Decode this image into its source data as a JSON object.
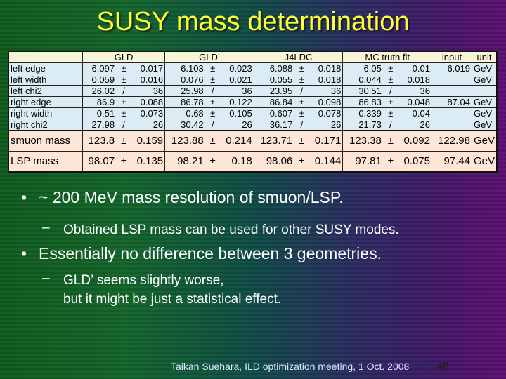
{
  "slide": {
    "title": "SUSY mass determination",
    "table": {
      "headers": [
        "",
        "GLD",
        "GLD’",
        "J4LDC",
        "MC truth fit",
        "input",
        "unit"
      ],
      "fit_rows": [
        {
          "label": "left edge",
          "cells": [
            [
              "6.097",
              "±",
              "0.017"
            ],
            [
              "6.103",
              "±",
              "0.023"
            ],
            [
              "6.088",
              "±",
              "0.018"
            ],
            [
              "6.05",
              "±",
              "0.01"
            ]
          ],
          "input": "6.019",
          "unit": "GeV"
        },
        {
          "label": "left width",
          "cells": [
            [
              "0.059",
              "±",
              "0.016"
            ],
            [
              "0.076",
              "±",
              "0.021"
            ],
            [
              "0.055",
              "±",
              "0.018"
            ],
            [
              "0.044",
              "±",
              "0.018"
            ]
          ],
          "input": "",
          "unit": "GeV"
        },
        {
          "label": "left chi2",
          "cells": [
            [
              "26.02",
              "/",
              "36"
            ],
            [
              "25.98",
              "/",
              "36"
            ],
            [
              "23.95",
              "/",
              "36"
            ],
            [
              "30.51",
              "/",
              "36"
            ]
          ],
          "input": "",
          "unit": ""
        },
        {
          "label": "right edge",
          "cells": [
            [
              "86.9",
              "±",
              "0.088"
            ],
            [
              "86.78",
              "±",
              "0.122"
            ],
            [
              "86.84",
              "±",
              "0.098"
            ],
            [
              "86.83",
              "±",
              "0.048"
            ]
          ],
          "input": "87.04",
          "unit": "GeV"
        },
        {
          "label": "right width",
          "cells": [
            [
              "0.51",
              "±",
              "0.073"
            ],
            [
              "0.68",
              "±",
              "0.105"
            ],
            [
              "0.607",
              "±",
              "0.078"
            ],
            [
              "0.339",
              "±",
              "0.04"
            ]
          ],
          "input": "",
          "unit": "GeV"
        },
        {
          "label": "right chi2",
          "cells": [
            [
              "27.98",
              "/",
              "26"
            ],
            [
              "30.42",
              "/",
              "26"
            ],
            [
              "36.17",
              "/",
              "26"
            ],
            [
              "21.73",
              "/",
              "26"
            ]
          ],
          "input": "",
          "unit": "GeV"
        }
      ],
      "mass_rows": [
        {
          "label": "smuon mass",
          "cells": [
            [
              "123.8",
              "±",
              "0.159"
            ],
            [
              "123.88",
              "±",
              "0.214"
            ],
            [
              "123.71",
              "±",
              "0.171"
            ],
            [
              "123.38",
              "±",
              "0.092"
            ]
          ],
          "input": "122.98",
          "unit": "GeV"
        },
        {
          "label": "LSP mass",
          "cells": [
            [
              "98.07",
              "±",
              "0.135"
            ],
            [
              "98.21",
              "±",
              "0.18"
            ],
            [
              "98.06",
              "±",
              "0.144"
            ],
            [
              "97.81",
              "±",
              "0.075"
            ]
          ],
          "input": "97.44",
          "unit": "GeV"
        }
      ]
    },
    "bullets": [
      {
        "text": "~ 200 MeV mass resolution of smuon/LSP.",
        "sub": [
          "Obtained LSP mass can be used for other SUSY modes."
        ]
      },
      {
        "text": "Essentially no difference between 3 geometries.",
        "sub": [
          "GLD’ seems slightly worse,",
          "but it might be just a statistical effect."
        ]
      }
    ],
    "bullet_glyph": "•",
    "dash_glyph": "–",
    "footer": {
      "text": "Taikan Suehara, ILD optimization meeting, 1 Oct. 2008",
      "page_label": "page",
      "page_number": "46"
    }
  }
}
